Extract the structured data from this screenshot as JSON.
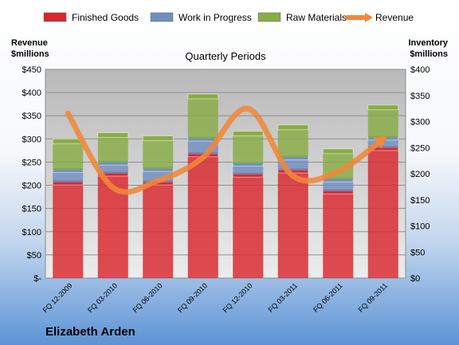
{
  "chart_data": {
    "type": "bar",
    "title": "Quarterly Periods",
    "footer": "Elizabeth Arden",
    "left_axis": {
      "label_line1": "Revenue",
      "label_line2": "$millions",
      "range": [
        0,
        450
      ],
      "ticks": [
        "$-",
        "$50",
        "$100",
        "$150",
        "$200",
        "$250",
        "$300",
        "$350",
        "$400",
        "$450"
      ]
    },
    "right_axis": {
      "label_line1": "Inventory",
      "label_line2": "$millions",
      "range": [
        0,
        400
      ],
      "ticks": [
        "$0",
        "$50",
        "$100",
        "$150",
        "$200",
        "$250",
        "$300",
        "$350",
        "$400"
      ]
    },
    "categories": [
      "FQ 12-2009",
      "FQ 03-2010",
      "FQ 06-2010",
      "FQ 09-2010",
      "FQ 12-2010",
      "FQ 03-2011",
      "FQ 06-2011",
      "FQ 09-2011"
    ],
    "bar_series": [
      {
        "name": "Finished Goods",
        "color": "#d9262c",
        "values": [
          183,
          200,
          183,
          237,
          198,
          206,
          166,
          249
        ]
      },
      {
        "name": "Work in Progress",
        "color": "#6f8fc0",
        "values": [
          24,
          21,
          26,
          30,
          21,
          25,
          23,
          20
        ]
      },
      {
        "name": "Raw Materials",
        "color": "#88ac44",
        "values": [
          55,
          53,
          59,
          81,
          58,
          58,
          54,
          58
        ]
      }
    ],
    "line_series": {
      "name": "Revenue",
      "color": "#f0883a",
      "axis": "left",
      "values": [
        355,
        195,
        210,
        260,
        365,
        220,
        230,
        300
      ]
    },
    "grid": true,
    "legend_position": "top"
  }
}
